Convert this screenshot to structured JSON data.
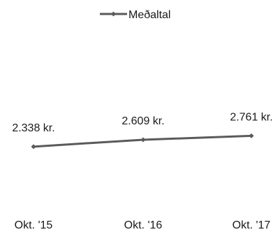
{
  "chart_data": {
    "type": "line",
    "categories": [
      "Okt. '15",
      "Okt. '16",
      "Okt. '17"
    ],
    "series": [
      {
        "name": "Meðaltal",
        "values": [
          2338,
          2609,
          2761
        ],
        "data_labels": [
          "2.338 kr.",
          "2.609 kr.",
          "2.761 kr."
        ],
        "color": "#5a5a5a"
      }
    ],
    "title": "",
    "xlabel": "",
    "ylabel": "",
    "ylim": [
      0,
      7000
    ],
    "grid": false,
    "legend": "top-center"
  }
}
